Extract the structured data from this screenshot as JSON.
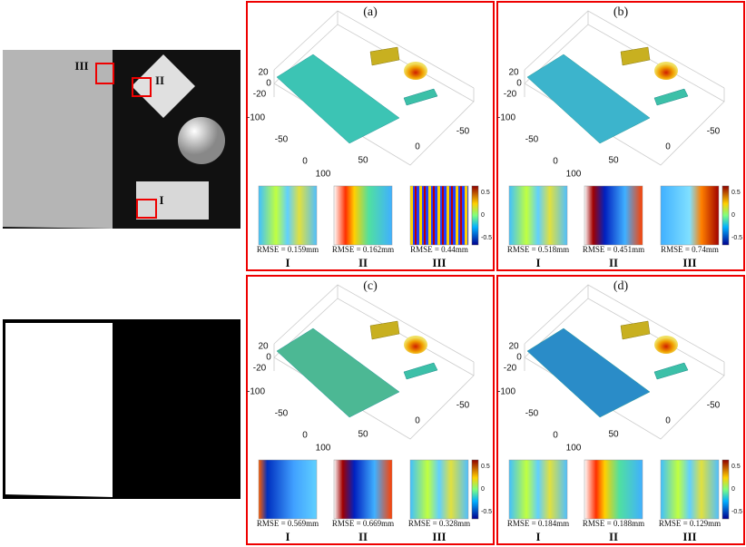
{
  "left_image": {
    "regions": [
      "III",
      "II",
      "I"
    ]
  },
  "axis_ticks": [
    "20",
    "0",
    "-20",
    "-100",
    "-50",
    "0",
    "100",
    "50",
    "0",
    "-50"
  ],
  "colorbar_ticks": [
    "0.5",
    "0",
    "-0.5"
  ],
  "regions": [
    "I",
    "II",
    "III"
  ],
  "panels": [
    {
      "label": "(a)",
      "rmse": [
        "RMSE = 0.159mm",
        "RMSE = 0.162mm",
        "RMSE = 0.44mm"
      ]
    },
    {
      "label": "(b)",
      "rmse": [
        "RMSE = 0.518mm",
        "RMSE = 0.451mm",
        "RMSE = 0.74mm"
      ]
    },
    {
      "label": "(c)",
      "rmse": [
        "RMSE = 0.569mm",
        "RMSE = 0.669mm",
        "RMSE = 0.328mm"
      ]
    },
    {
      "label": "(d)",
      "rmse": [
        "RMSE = 0.184mm",
        "RMSE = 0.188mm",
        "RMSE = 0.129mm"
      ]
    }
  ]
}
